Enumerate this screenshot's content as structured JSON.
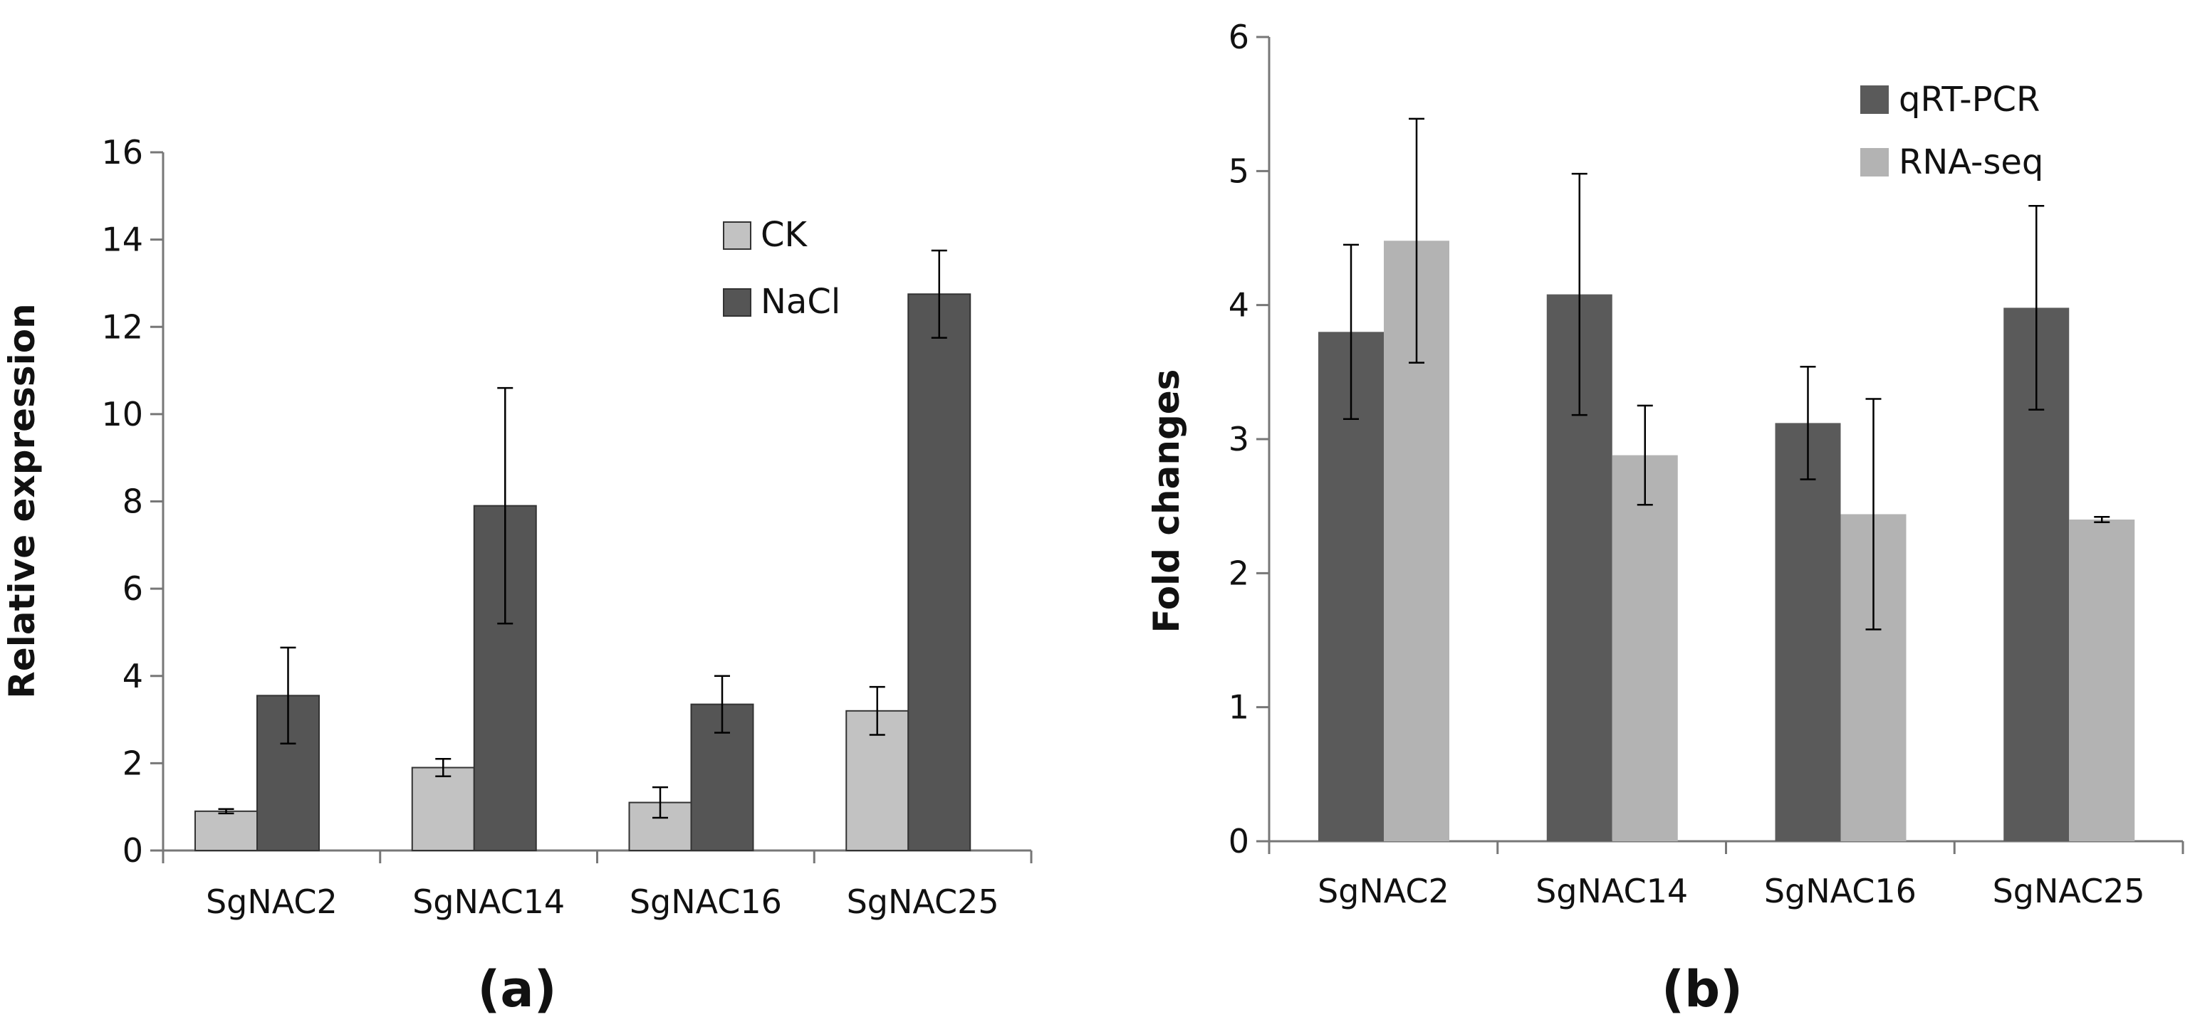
{
  "chart_data": [
    {
      "type": "bar",
      "panel_label": "(a)",
      "title": "",
      "xlabel": "",
      "ylabel": "Relative expression",
      "ylim": [
        0,
        16
      ],
      "yticks": [
        0,
        2,
        4,
        6,
        8,
        10,
        12,
        14,
        16
      ],
      "categories": [
        "SgNAC2",
        "SgNAC14",
        "SgNAC16",
        "SgNAC25"
      ],
      "legend_position": "top-right",
      "grid": false,
      "series": [
        {
          "name": "CK",
          "color": "#c2c2c2",
          "values": [
            0.9,
            1.9,
            1.1,
            3.2
          ],
          "errors": [
            0.05,
            0.2,
            0.35,
            0.55
          ]
        },
        {
          "name": "NaCl",
          "color": "#555555",
          "values": [
            3.55,
            7.9,
            3.35,
            12.75
          ],
          "errors": [
            1.1,
            2.7,
            0.65,
            1.0
          ]
        }
      ]
    },
    {
      "type": "bar",
      "panel_label": "(b)",
      "title": "",
      "xlabel": "",
      "ylabel": "Fold changes",
      "ylim": [
        0,
        6
      ],
      "yticks": [
        0,
        1,
        2,
        3,
        4,
        5,
        6
      ],
      "categories": [
        "SgNAC2",
        "SgNAC14",
        "SgNAC16",
        "SgNAC25"
      ],
      "legend_position": "top-right",
      "grid": false,
      "series": [
        {
          "name": "qRT-PCR",
          "color": "#5a5a5a",
          "values": [
            3.8,
            4.08,
            3.12,
            3.98
          ],
          "errors": [
            0.65,
            0.9,
            0.42,
            0.76
          ]
        },
        {
          "name": "RNA-seq",
          "color": "#b3b3b3",
          "values": [
            4.48,
            2.88,
            2.44,
            2.4
          ],
          "errors": [
            0.91,
            0.37,
            0.86,
            0.02
          ]
        }
      ]
    }
  ]
}
